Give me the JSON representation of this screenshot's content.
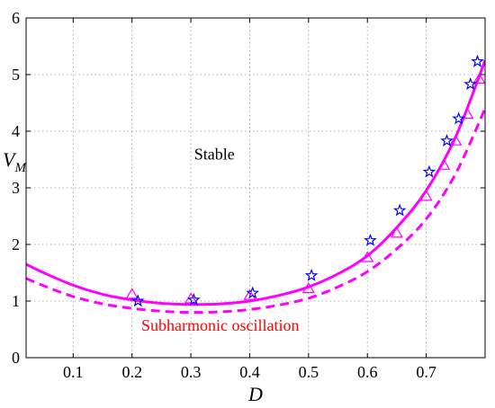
{
  "chart_data": {
    "type": "line",
    "xlabel": "D",
    "ylabel": "V",
    "ylabel_subscript": "M",
    "xlim": [
      0.02,
      0.8
    ],
    "ylim": [
      0,
      6
    ],
    "xticks": [
      0.1,
      0.2,
      0.3,
      0.4,
      0.5,
      0.6,
      0.7
    ],
    "xtick_labels": [
      "0.1",
      "0.2",
      "0.3",
      "0.4",
      "0.5",
      "0.6",
      "0.7"
    ],
    "yticks": [
      0,
      1,
      2,
      3,
      4,
      5,
      6
    ],
    "ytick_labels": [
      "0",
      "1",
      "2",
      "3",
      "4",
      "5",
      "6"
    ],
    "grid": true,
    "annotations": [
      {
        "text": "Stable",
        "x": 0.34,
        "y": 3.5,
        "color": "#000000"
      },
      {
        "text": "Subharmonic oscillation",
        "x": 0.35,
        "y": 0.48,
        "color": "#ff0000"
      }
    ],
    "colors": {
      "magenta": "#ff00ff",
      "blue": "#0000ff",
      "grid": "#999999",
      "axis": "#000000"
    },
    "series": [
      {
        "style": "solid",
        "color": "#ff00ff",
        "x": [
          0.02,
          0.05,
          0.1,
          0.15,
          0.2,
          0.25,
          0.3,
          0.35,
          0.4,
          0.45,
          0.5,
          0.55,
          0.6,
          0.65,
          0.7,
          0.75,
          0.8
        ],
        "y": [
          1.65,
          1.5,
          1.28,
          1.12,
          1.02,
          0.96,
          0.94,
          0.95,
          1.0,
          1.1,
          1.25,
          1.48,
          1.8,
          2.3,
          2.95,
          3.9,
          5.25
        ]
      },
      {
        "style": "dashed",
        "color": "#ff00ff",
        "x": [
          0.02,
          0.05,
          0.1,
          0.15,
          0.2,
          0.25,
          0.3,
          0.35,
          0.4,
          0.45,
          0.5,
          0.55,
          0.6,
          0.65,
          0.7,
          0.75,
          0.8
        ],
        "y": [
          1.4,
          1.27,
          1.08,
          0.95,
          0.87,
          0.82,
          0.8,
          0.81,
          0.85,
          0.93,
          1.05,
          1.25,
          1.52,
          1.92,
          2.45,
          3.25,
          4.4
        ]
      },
      {
        "style": "triangle-markers",
        "color": "#ff00ff",
        "x": [
          0.2,
          0.3,
          0.4,
          0.5,
          0.6,
          0.65,
          0.7,
          0.73,
          0.75,
          0.77,
          0.79
        ],
        "y": [
          1.12,
          1.04,
          1.1,
          1.22,
          1.77,
          2.2,
          2.85,
          3.4,
          3.83,
          4.3,
          4.92
        ]
      },
      {
        "style": "star-markers",
        "color": "#0000ff",
        "x": [
          0.21,
          0.305,
          0.405,
          0.505,
          0.605,
          0.655,
          0.705,
          0.735,
          0.755,
          0.775,
          0.787
        ],
        "y": [
          1.0,
          1.02,
          1.14,
          1.45,
          2.07,
          2.6,
          3.28,
          3.83,
          4.22,
          4.83,
          5.23
        ]
      }
    ]
  }
}
